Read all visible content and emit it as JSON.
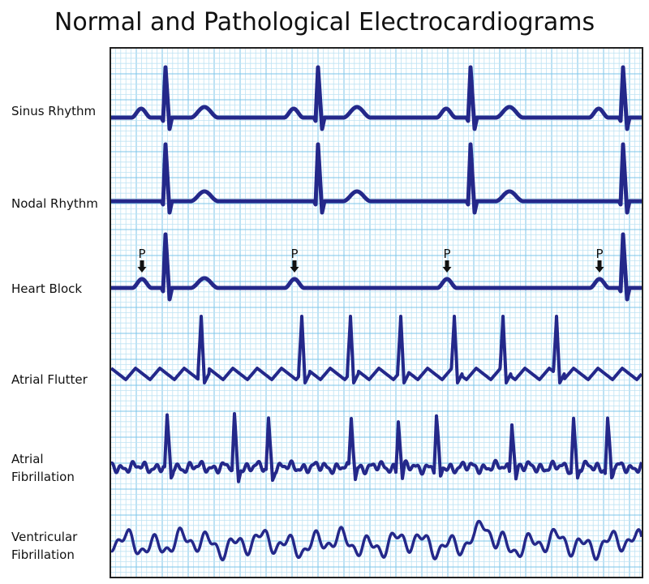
{
  "title": "Normal and Pathological Electrocardiograms",
  "rows": [
    {
      "label": "Sinus Rhythm"
    },
    {
      "label": "Nodal Rhythm"
    },
    {
      "label": "Heart Block"
    },
    {
      "label": "Atrial Flutter"
    },
    {
      "label": "Atrial Fibrillation"
    },
    {
      "label": "Ventricular Fibrillation"
    }
  ],
  "p_wave_marker": "P",
  "colors": {
    "trace": "#24288a",
    "grid_minor": "#bfe3f3",
    "grid_major": "#7cc6ea",
    "frame": "#222222"
  }
}
